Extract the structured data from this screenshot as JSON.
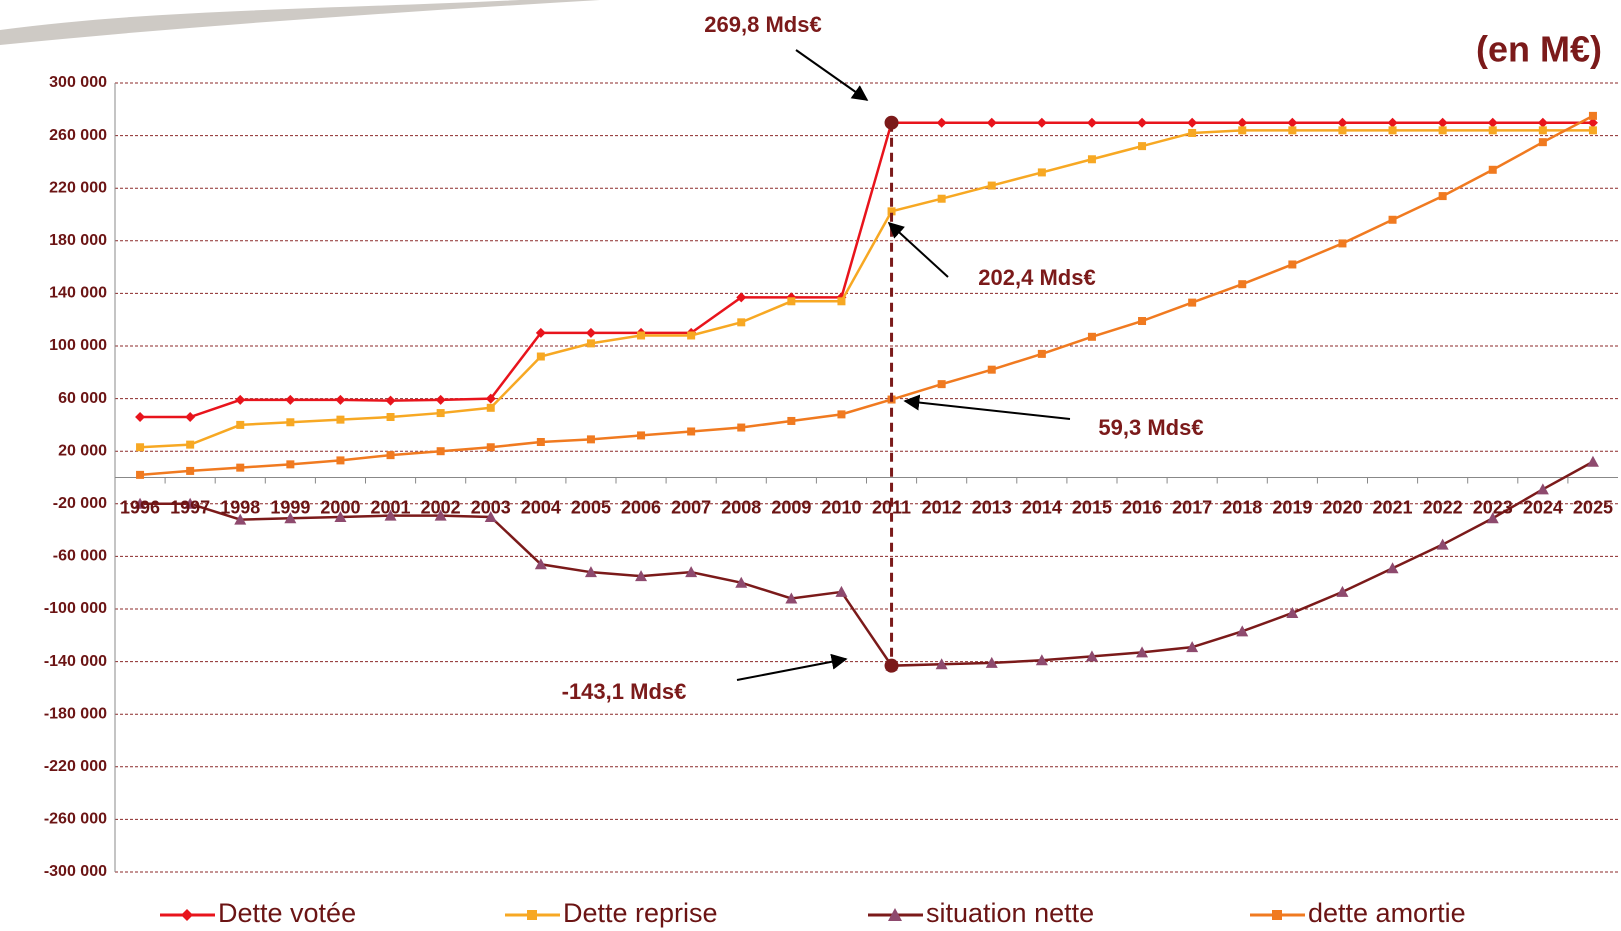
{
  "chart_data": {
    "type": "line",
    "unit_label": "(en M€)",
    "annotations": [
      "269,8 Mds€",
      "202,4 Mds€",
      "59,3 Mds€",
      "-143,1 Mds€"
    ],
    "categories": [
      "1996",
      "1997",
      "1998",
      "1999",
      "2000",
      "2001",
      "2002",
      "2003",
      "2004",
      "2005",
      "2006",
      "2007",
      "2008",
      "2009",
      "2010",
      "2011",
      "2012",
      "2013",
      "2014",
      "2015",
      "2016",
      "2017",
      "2018",
      "2019",
      "2020",
      "2021",
      "2022",
      "2023",
      "2024",
      "2025"
    ],
    "series": [
      {
        "name": "Dette votée",
        "color": "#e8141c",
        "marker": "diamond",
        "values": [
          46000,
          46000,
          59000,
          59000,
          59000,
          58500,
          59000,
          60000,
          110000,
          110000,
          110000,
          110000,
          137000,
          137000,
          137000,
          269800,
          269800,
          269800,
          269800,
          269800,
          269800,
          269800,
          269800,
          269800,
          269800,
          269800,
          269800,
          269800,
          269800,
          269800
        ]
      },
      {
        "name": "Dette reprise",
        "color": "#f7a823",
        "marker": "square",
        "values": [
          23000,
          25000,
          40000,
          42000,
          44000,
          46000,
          49000,
          53000,
          92000,
          102000,
          108000,
          108000,
          118000,
          134000,
          134000,
          202400,
          212000,
          222000,
          232000,
          242000,
          252000,
          262000,
          264000,
          264000,
          264000,
          264000,
          264000,
          264000,
          264000,
          264000
        ]
      },
      {
        "name": "situation nette",
        "color": "#7b1a1a",
        "marker": "triangle",
        "values": [
          -20000,
          -20000,
          -32000,
          -31000,
          -30000,
          -29000,
          -29000,
          -30000,
          -66000,
          -72000,
          -75000,
          -72000,
          -80000,
          -92000,
          -87000,
          -143100,
          -142000,
          -141000,
          -139000,
          -136000,
          -133000,
          -129000,
          -117000,
          -103000,
          -87000,
          -69000,
          -51000,
          -31000,
          -9000,
          12000
        ]
      },
      {
        "name": "dette amortie",
        "color": "#f07a20",
        "marker": "square",
        "values": [
          2000,
          5000,
          7500,
          10000,
          13000,
          17000,
          20000,
          23000,
          27000,
          29000,
          32000,
          35000,
          38000,
          43000,
          48000,
          59300,
          71000,
          82000,
          94000,
          107000,
          119000,
          133000,
          147000,
          162000,
          178000,
          196000,
          214000,
          234000,
          255000,
          275000
        ]
      }
    ],
    "ylim": [
      -300000,
      300000
    ],
    "yticks": [
      {
        "value": -300000,
        "label": "-300 000"
      },
      {
        "value": -260000,
        "label": "-260 000"
      },
      {
        "value": -220000,
        "label": "-220 000"
      },
      {
        "value": -180000,
        "label": "-180 000"
      },
      {
        "value": -140000,
        "label": "-140 000"
      },
      {
        "value": -100000,
        "label": "-100 000"
      },
      {
        "value": -60000,
        "label": "-60 000"
      },
      {
        "value": -20000,
        "label": "-20 000"
      },
      {
        "value": 20000,
        "label": "20 000"
      },
      {
        "value": 60000,
        "label": "60 000"
      },
      {
        "value": 100000,
        "label": "100 000"
      },
      {
        "value": 140000,
        "label": "140 000"
      },
      {
        "value": 180000,
        "label": "180 000"
      },
      {
        "value": 220000,
        "label": "220 000"
      },
      {
        "value": 260000,
        "label": "260 000"
      },
      {
        "value": 300000,
        "label": "300 000"
      }
    ],
    "grid": true
  }
}
